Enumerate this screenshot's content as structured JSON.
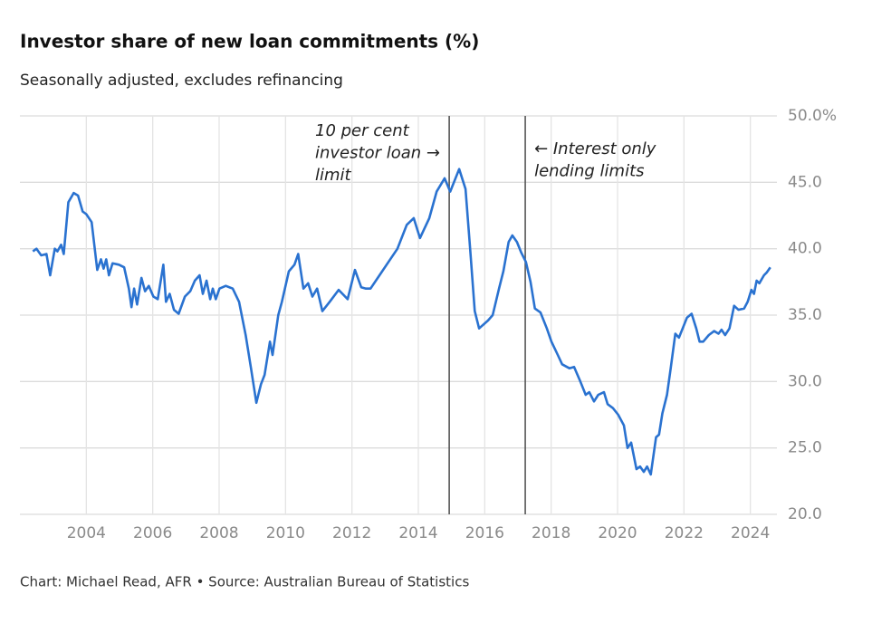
{
  "chart_data": {
    "type": "line",
    "title": "Investor share of new loan commitments (%)",
    "subtitle": "Seasonally adjusted, excludes refinancing",
    "source": "Chart: Michael Read, AFR • Source: Australian Bureau of Statistics",
    "xlim": [
      2002,
      2024.8
    ],
    "xticks": [
      2004,
      2006,
      2008,
      2010,
      2012,
      2014,
      2016,
      2018,
      2020,
      2022,
      2024
    ],
    "ylim": [
      20,
      50
    ],
    "yticks": [
      {
        "value": 20,
        "label": "20.0"
      },
      {
        "value": 25,
        "label": "25.0"
      },
      {
        "value": 30,
        "label": "30.0"
      },
      {
        "value": 35,
        "label": "35.0"
      },
      {
        "value": 40,
        "label": "40.0"
      },
      {
        "value": 45,
        "label": "45.0"
      },
      {
        "value": 50,
        "label": "50.0%"
      }
    ],
    "grid": true,
    "annotations": [
      {
        "x": 2014.93,
        "lines": [
          "10 per cent",
          "investor loan →",
          "limit"
        ]
      },
      {
        "x": 2017.22,
        "lines": [
          "← Interest only",
          "lending limits"
        ]
      }
    ],
    "series": [
      {
        "name": "Investor share",
        "color": "#2a72d0",
        "x": [
          2002.39,
          2002.5,
          2002.64,
          2002.8,
          2002.91,
          2003.05,
          2003.13,
          2003.24,
          2003.32,
          2003.46,
          2003.62,
          2003.75,
          2003.89,
          2004.0,
          2004.16,
          2004.33,
          2004.44,
          2004.52,
          2004.6,
          2004.68,
          2004.79,
          2004.98,
          2005.14,
          2005.28,
          2005.36,
          2005.44,
          2005.53,
          2005.66,
          2005.77,
          2005.88,
          2006.02,
          2006.15,
          2006.32,
          2006.4,
          2006.51,
          2006.64,
          2006.78,
          2006.97,
          2007.13,
          2007.27,
          2007.41,
          2007.51,
          2007.62,
          2007.73,
          2007.81,
          2007.9,
          2008.01,
          2008.2,
          2008.41,
          2008.6,
          2008.8,
          2008.96,
          2009.12,
          2009.26,
          2009.37,
          2009.53,
          2009.61,
          2009.78,
          2009.89,
          2010.1,
          2010.27,
          2010.38,
          2010.54,
          2010.68,
          2010.81,
          2010.95,
          2011.11,
          2011.33,
          2011.6,
          2011.87,
          2012.09,
          2012.28,
          2012.42,
          2012.56,
          2012.83,
          2013.1,
          2013.37,
          2013.65,
          2013.86,
          2014.05,
          2014.33,
          2014.55,
          2014.79,
          2014.96,
          2015.23,
          2015.42,
          2015.56,
          2015.7,
          2015.83,
          2016.1,
          2016.24,
          2016.43,
          2016.56,
          2016.72,
          2016.83,
          2016.97,
          2017.1,
          2017.24,
          2017.38,
          2017.51,
          2017.68,
          2017.87,
          2018.01,
          2018.2,
          2018.33,
          2018.55,
          2018.69,
          2018.88,
          2019.04,
          2019.15,
          2019.29,
          2019.42,
          2019.59,
          2019.7,
          2019.86,
          2020.02,
          2020.19,
          2020.3,
          2020.41,
          2020.57,
          2020.68,
          2020.79,
          2020.89,
          2021.0,
          2021.16,
          2021.25,
          2021.35,
          2021.49,
          2021.6,
          2021.74,
          2021.85,
          2021.96,
          2022.09,
          2022.23,
          2022.37,
          2022.47,
          2022.58,
          2022.75,
          2022.91,
          2023.04,
          2023.13,
          2023.24,
          2023.37,
          2023.51,
          2023.64,
          2023.81,
          2023.92,
          2024.03,
          2024.11,
          2024.19,
          2024.27,
          2024.41,
          2024.49,
          2024.6
        ],
        "values": [
          39.8,
          40.0,
          39.5,
          39.6,
          38.0,
          40.0,
          39.8,
          40.3,
          39.6,
          43.5,
          44.2,
          44.0,
          42.8,
          42.6,
          42.0,
          38.4,
          39.2,
          38.5,
          39.2,
          38.0,
          38.9,
          38.8,
          38.6,
          37.0,
          35.6,
          37.0,
          35.8,
          37.8,
          36.8,
          37.2,
          36.4,
          36.2,
          38.8,
          36.0,
          36.6,
          35.4,
          35.1,
          36.4,
          36.8,
          37.6,
          38.0,
          36.6,
          37.6,
          36.2,
          37.0,
          36.2,
          37.0,
          37.2,
          37.0,
          36.0,
          33.5,
          31.0,
          28.4,
          29.8,
          30.5,
          33.0,
          32.0,
          35.0,
          36.0,
          38.3,
          38.8,
          39.6,
          37.0,
          37.4,
          36.4,
          37.0,
          35.3,
          36.0,
          36.9,
          36.2,
          38.4,
          37.1,
          37.0,
          37.0,
          38.0,
          39.0,
          40.0,
          41.8,
          42.3,
          40.8,
          42.3,
          44.3,
          45.3,
          44.3,
          46.0,
          44.5,
          40.0,
          35.3,
          34.0,
          34.6,
          35.0,
          37.0,
          38.3,
          40.5,
          41.0,
          40.5,
          39.7,
          39.0,
          37.5,
          35.5,
          35.2,
          34.0,
          33.0,
          32.0,
          31.3,
          31.0,
          31.1,
          30.0,
          29.0,
          29.2,
          28.5,
          29.0,
          29.2,
          28.3,
          28.0,
          27.5,
          26.7,
          25.0,
          25.4,
          23.4,
          23.6,
          23.2,
          23.6,
          23.0,
          25.8,
          26.0,
          27.6,
          29.0,
          31.0,
          33.6,
          33.3,
          34.0,
          34.8,
          35.1,
          34.0,
          33.0,
          33.0,
          33.5,
          33.8,
          33.6,
          33.9,
          33.5,
          34.0,
          35.7,
          35.4,
          35.5,
          36.0,
          36.9,
          36.6,
          37.6,
          37.4,
          38.0,
          38.2,
          38.6
        ]
      }
    ]
  }
}
